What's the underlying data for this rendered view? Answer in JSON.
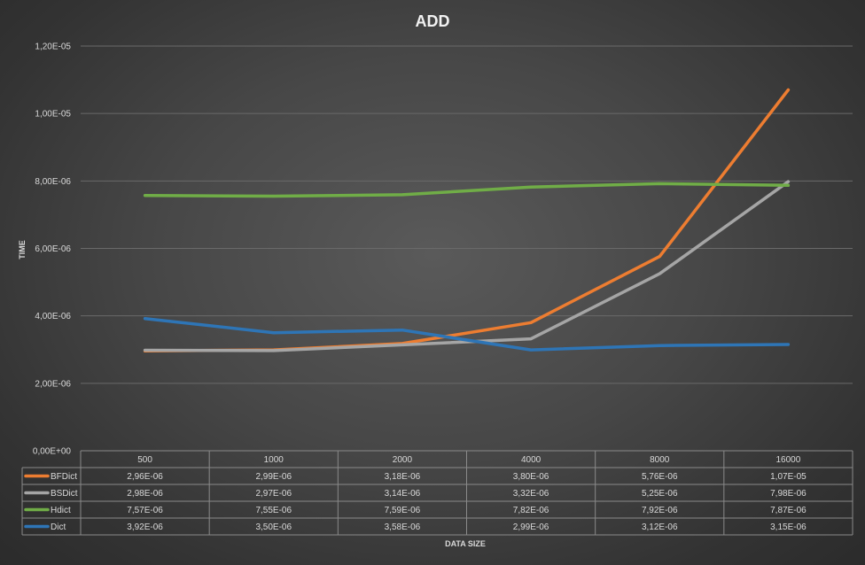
{
  "chart_data": {
    "type": "line",
    "title": "ADD",
    "xlabel": "DATA SIZE",
    "ylabel": "TIME",
    "categories": [
      "500",
      "1000",
      "2000",
      "4000",
      "8000",
      "16000"
    ],
    "ylim": [
      0,
      1.2e-05
    ],
    "yticks": [
      0,
      2e-06,
      4e-06,
      6e-06,
      8e-06,
      1e-05,
      1.2e-05
    ],
    "ytick_labels": [
      "0,00E+00",
      "2,00E-06",
      "4,00E-06",
      "6,00E-06",
      "8,00E-06",
      "1,00E-05",
      "1,20E-05"
    ],
    "grid": true,
    "legend": "data-table",
    "series": [
      {
        "name": "BFDict",
        "color": "#ed7d31",
        "values": [
          2.96e-06,
          2.99e-06,
          3.18e-06,
          3.8e-06,
          5.76e-06,
          1.07e-05
        ],
        "labels": [
          "2,96E-06",
          "2,99E-06",
          "3,18E-06",
          "3,80E-06",
          "5,76E-06",
          "1,07E-05"
        ]
      },
      {
        "name": "BSDict",
        "color": "#a5a5a5",
        "values": [
          2.98e-06,
          2.97e-06,
          3.14e-06,
          3.32e-06,
          5.25e-06,
          7.98e-06
        ],
        "labels": [
          "2,98E-06",
          "2,97E-06",
          "3,14E-06",
          "3,32E-06",
          "5,25E-06",
          "7,98E-06"
        ]
      },
      {
        "name": "Hdict",
        "color": "#70ad47",
        "values": [
          7.57e-06,
          7.55e-06,
          7.59e-06,
          7.82e-06,
          7.92e-06,
          7.87e-06
        ],
        "labels": [
          "7,57E-06",
          "7,55E-06",
          "7,59E-06",
          "7,82E-06",
          "7,92E-06",
          "7,87E-06"
        ]
      },
      {
        "name": "Dict",
        "color": "#2e75b6",
        "values": [
          3.92e-06,
          3.5e-06,
          3.58e-06,
          2.99e-06,
          3.12e-06,
          3.15e-06
        ],
        "labels": [
          "3,92E-06",
          "3,50E-06",
          "3,58E-06",
          "2,99E-06",
          "3,12E-06",
          "3,15E-06"
        ]
      }
    ]
  }
}
